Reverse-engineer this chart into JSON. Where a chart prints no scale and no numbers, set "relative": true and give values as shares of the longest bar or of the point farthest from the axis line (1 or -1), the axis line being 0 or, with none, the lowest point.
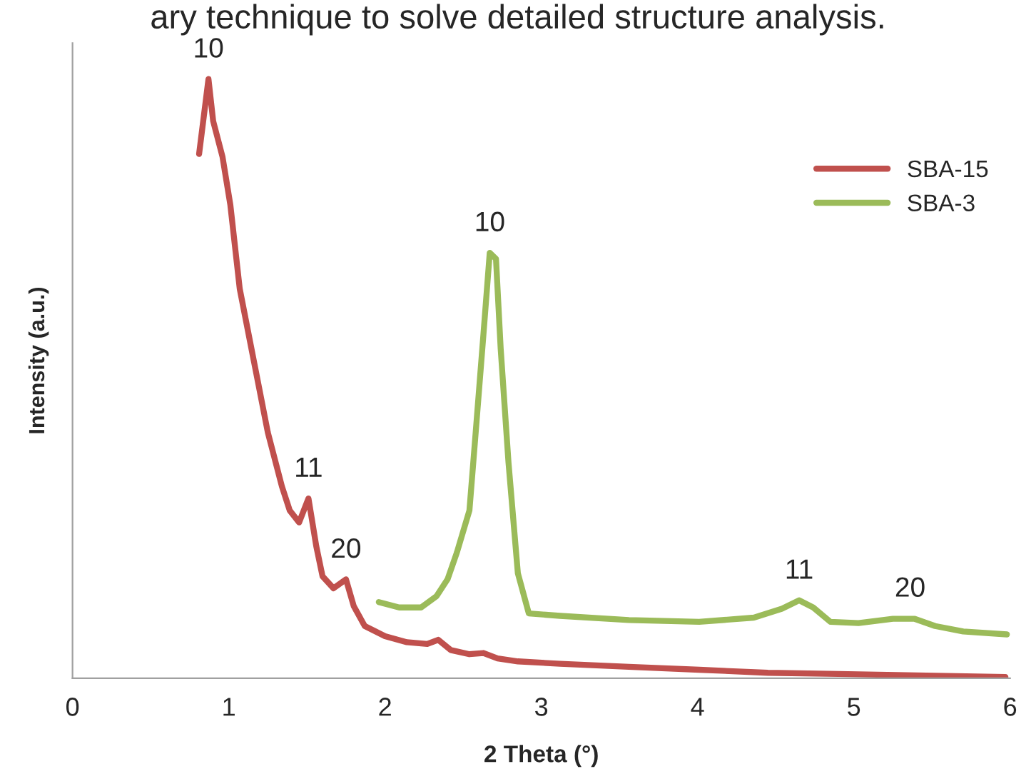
{
  "chart_data": {
    "type": "line",
    "relative": true,
    "xlabel": "2 Theta (°)",
    "ylabel": "Intensity (a.u.)",
    "xlim": [
      0,
      6
    ],
    "xticks": [
      0,
      1,
      2,
      3,
      4,
      5,
      6
    ],
    "grid": false,
    "legend": "top right",
    "marker": "none",
    "line_style": "solid",
    "series": [
      {
        "name": "SBA-15",
        "color": "#c0504d",
        "x": [
          0.81,
          0.87,
          0.9,
          0.96,
          1.01,
          1.07,
          1.16,
          1.25,
          1.34,
          1.39,
          1.45,
          1.51,
          1.56,
          1.6,
          1.67,
          1.75,
          1.8,
          1.87,
          2.0,
          2.14,
          2.27,
          2.34,
          2.42,
          2.54,
          2.63,
          2.72,
          2.85,
          3.12,
          3.56,
          4.01,
          4.45,
          4.9,
          5.34,
          5.97
        ],
        "values": [
          0.875,
          1.0,
          0.93,
          0.87,
          0.79,
          0.65,
          0.53,
          0.41,
          0.32,
          0.28,
          0.26,
          0.3,
          0.22,
          0.17,
          0.15,
          0.165,
          0.12,
          0.087,
          0.07,
          0.06,
          0.057,
          0.064,
          0.047,
          0.04,
          0.042,
          0.033,
          0.028,
          0.024,
          0.019,
          0.014,
          0.009,
          0.007,
          0.005,
          0.002
        ]
      },
      {
        "name": "SBA-3",
        "color": "#9bbb59",
        "x": [
          1.96,
          2.09,
          2.23,
          2.33,
          2.4,
          2.46,
          2.54,
          2.58,
          2.63,
          2.67,
          2.71,
          2.74,
          2.79,
          2.85,
          2.92,
          3.12,
          3.56,
          4.01,
          4.36,
          4.54,
          4.65,
          4.74,
          4.85,
          5.03,
          5.25,
          5.39,
          5.52,
          5.7,
          5.98
        ],
        "values": [
          0.127,
          0.118,
          0.118,
          0.137,
          0.165,
          0.21,
          0.28,
          0.41,
          0.575,
          0.71,
          0.7,
          0.55,
          0.36,
          0.175,
          0.108,
          0.104,
          0.097,
          0.094,
          0.101,
          0.116,
          0.13,
          0.118,
          0.094,
          0.092,
          0.099,
          0.099,
          0.087,
          0.078,
          0.073
        ]
      }
    ],
    "annotations": [
      "ary technique to solve detailed structure analysis.",
      {
        "text": "10",
        "x": 0.87,
        "y": 1.0
      },
      {
        "text": "11",
        "x": 1.51,
        "y": 0.3
      },
      {
        "text": "20",
        "x": 1.75,
        "y": 0.165
      },
      {
        "text": "10",
        "x": 2.67,
        "y": 0.71
      },
      {
        "text": "11",
        "x": 4.65,
        "y": 0.13
      },
      {
        "text": "20",
        "x": 5.36,
        "y": 0.1
      }
    ]
  }
}
